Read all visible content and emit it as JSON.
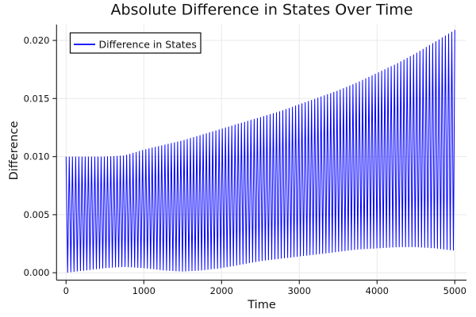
{
  "chart_data": {
    "type": "line",
    "title": "Absolute Difference in States Over Time",
    "xlabel": "Time",
    "ylabel": "Difference",
    "grid": true,
    "xlim": [
      0,
      5000
    ],
    "ylim": [
      0,
      0.021
    ],
    "xticks": {
      "values": [
        0,
        1000,
        2000,
        3000,
        4000,
        5000
      ],
      "labels": [
        "0",
        "1000",
        "2000",
        "3000",
        "4000",
        "5000"
      ]
    },
    "yticks": {
      "values": [
        0,
        0.005,
        0.01,
        0.015,
        0.02
      ],
      "labels": [
        "0.000",
        "0.005",
        "0.010",
        "0.015",
        "0.020"
      ]
    },
    "legend": {
      "position": "top-left",
      "entries": [
        {
          "label": "Difference in States",
          "color": "#0000ff"
        }
      ]
    },
    "colors": {
      "series": "#0000ff",
      "axis": "#2b2b2b",
      "grid": "#e9e9e9",
      "text": "#111111",
      "legend_border": "#1a1a1a",
      "background": "#ffffff"
    },
    "series": [
      {
        "name": "Difference in States",
        "color": "#0000ff",
        "style": "dense rapid oscillation filling the band between a lower and an upper envelope",
        "oscillation_period_t": 41,
        "approx_num_oscillations": 122,
        "envelope_t": [
          0,
          250,
          500,
          750,
          1000,
          1250,
          1500,
          1750,
          2000,
          2250,
          2500,
          2750,
          3000,
          3250,
          3500,
          3750,
          4000,
          4250,
          4500,
          4750,
          5000
        ],
        "envelope_lower": [
          0.0,
          0.0002,
          0.0004,
          0.0005,
          0.0004,
          0.0002,
          0.0001,
          0.0002,
          0.0004,
          0.0007,
          0.001,
          0.0012,
          0.0014,
          0.0016,
          0.0018,
          0.002,
          0.0021,
          0.0022,
          0.0022,
          0.0021,
          0.0019
        ],
        "envelope_upper": [
          0.01,
          0.01,
          0.01,
          0.0101,
          0.0106,
          0.011,
          0.0114,
          0.0119,
          0.0124,
          0.0129,
          0.0134,
          0.0139,
          0.0145,
          0.0151,
          0.0157,
          0.0164,
          0.0172,
          0.018,
          0.0189,
          0.0199,
          0.0209
        ]
      }
    ]
  }
}
